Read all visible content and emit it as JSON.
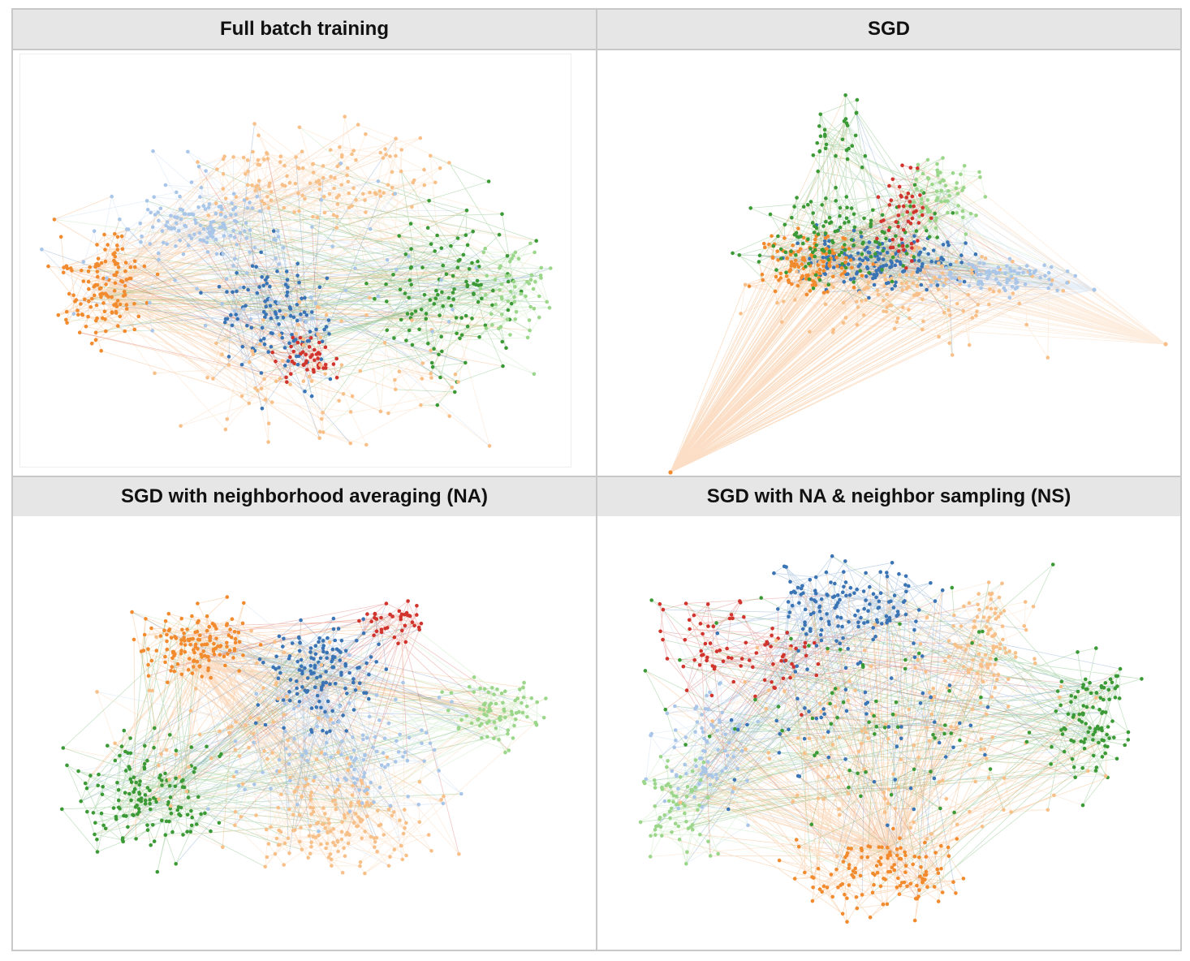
{
  "panels": [
    {
      "title": "Full batch training"
    },
    {
      "title": "SGD"
    },
    {
      "title": "SGD with neighborhood averaging (NA)"
    },
    {
      "title": "SGD with NA & neighbor sampling (NS)"
    }
  ],
  "palette": {
    "dark_orange": "#f28a2e",
    "light_orange": "#f8c089",
    "blue": "#3a74b5",
    "light_blue": "#a9c6e8",
    "green": "#3b9a36",
    "light_green": "#9bd68a",
    "red": "#d0342c",
    "border": "#c8c8c8",
    "header_bg": "#e6e6e6"
  }
}
